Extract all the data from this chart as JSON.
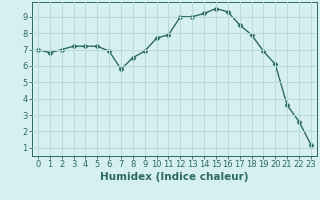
{
  "x": [
    0,
    1,
    2,
    3,
    4,
    5,
    6,
    7,
    8,
    9,
    10,
    11,
    12,
    13,
    14,
    15,
    16,
    17,
    18,
    19,
    20,
    21,
    22,
    23
  ],
  "y": [
    7.0,
    6.8,
    7.0,
    7.2,
    7.2,
    7.2,
    6.9,
    5.8,
    6.5,
    6.9,
    7.7,
    7.9,
    9.0,
    9.0,
    9.2,
    9.5,
    9.3,
    8.5,
    7.9,
    6.9,
    6.1,
    3.6,
    2.6,
    1.2
  ],
  "line_color": "#2d6b5e",
  "marker": "D",
  "marker_size": 2.5,
  "bg_color": "#d6f0f0",
  "grid_color": "#b8dada",
  "xlabel": "Humidex (Indice chaleur)",
  "xlim": [
    -0.5,
    23.5
  ],
  "ylim": [
    0.5,
    9.9
  ],
  "yticks": [
    1,
    2,
    3,
    4,
    5,
    6,
    7,
    8,
    9
  ],
  "xticks": [
    0,
    1,
    2,
    3,
    4,
    5,
    6,
    7,
    8,
    9,
    10,
    11,
    12,
    13,
    14,
    15,
    16,
    17,
    18,
    19,
    20,
    21,
    22,
    23
  ],
  "tick_fontsize": 6,
  "xlabel_fontsize": 7.5,
  "line_width": 1.0
}
